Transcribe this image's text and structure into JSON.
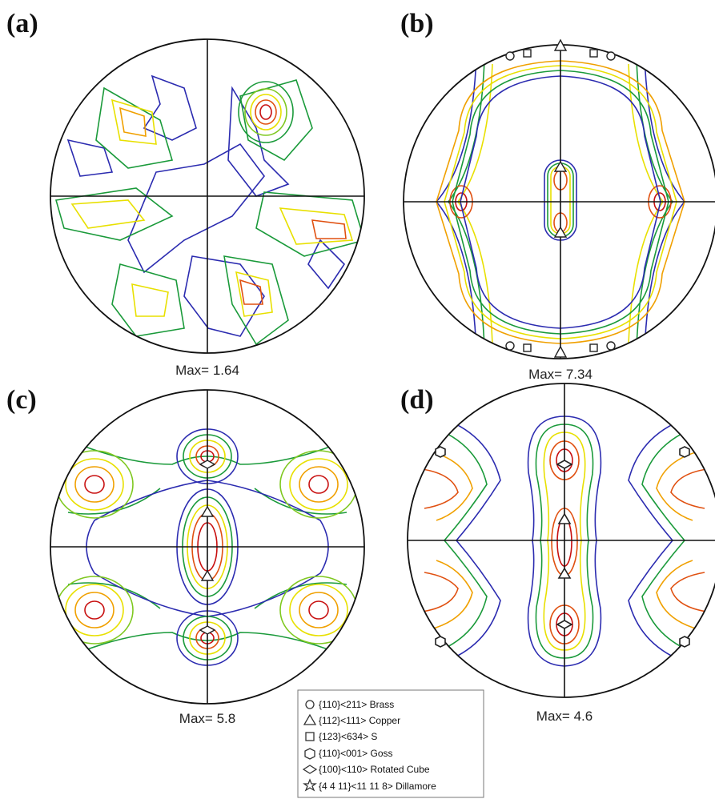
{
  "figure": {
    "panels": [
      {
        "id": "a",
        "label": "(a)",
        "max_text": "Max= 1.64"
      },
      {
        "id": "b",
        "label": "(b)",
        "max_text": "Max= 7.34"
      },
      {
        "id": "c",
        "label": "(c)",
        "max_text": "Max= 5.8"
      },
      {
        "id": "d",
        "label": "(d)",
        "max_text": "Max= 4.6"
      }
    ],
    "legend": [
      {
        "symbol": "circle-icon",
        "text": "{110}<211> Brass"
      },
      {
        "symbol": "triangle-icon",
        "text": "{112}<111> Copper"
      },
      {
        "symbol": "square-icon",
        "text": "{123}<634> S"
      },
      {
        "symbol": "hexagon-icon",
        "text": "{110}<001> Goss"
      },
      {
        "symbol": "diamond-icon",
        "text": "{100}<110> Rotated Cube"
      },
      {
        "symbol": "star-icon",
        "text": "{4 4 11}<11 11 8> Dillamore"
      }
    ],
    "contour_colors": [
      "#2b2bb0",
      "#1a9a3a",
      "#7fc820",
      "#e8e000",
      "#f0a000",
      "#e05010",
      "#c81010"
    ]
  }
}
